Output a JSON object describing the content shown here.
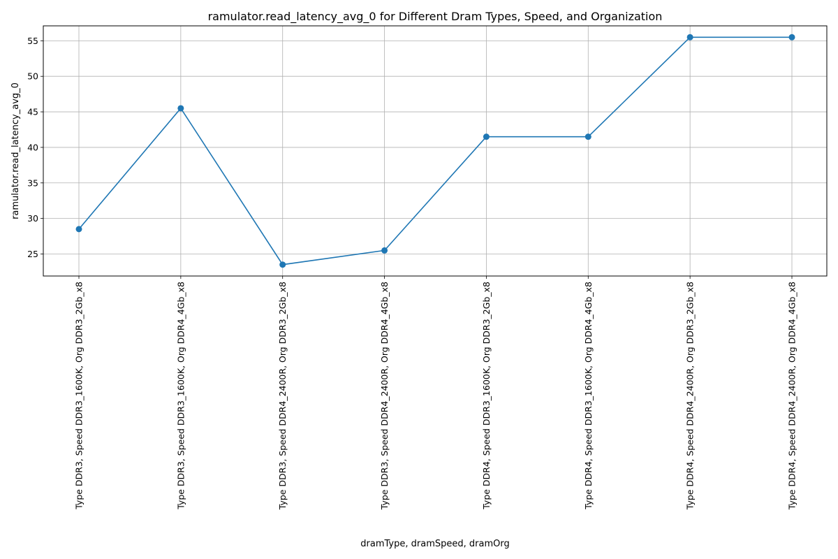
{
  "chart_data": {
    "type": "line",
    "title": "ramulator.read_latency_avg_0 for Different Dram Types, Speed, and Organization",
    "xlabel": "dramType, dramSpeed, dramOrg",
    "ylabel": "ramulator.read_latency_avg_0",
    "categories": [
      "Type DDR3, Speed DDR3_1600K, Org DDR3_2Gb_x8",
      "Type DDR3, Speed DDR3_1600K, Org DDR4_4Gb_x8",
      "Type DDR3, Speed DDR4_2400R, Org DDR3_2Gb_x8",
      "Type DDR3, Speed DDR4_2400R, Org DDR4_4Gb_x8",
      "Type DDR4, Speed DDR3_1600K, Org DDR3_2Gb_x8",
      "Type DDR4, Speed DDR3_1600K, Org DDR4_4Gb_x8",
      "Type DDR4, Speed DDR4_2400R, Org DDR3_2Gb_x8",
      "Type DDR4, Speed DDR4_2400R, Org DDR4_4Gb_x8"
    ],
    "series": [
      {
        "values": [
          28.5,
          45.5,
          23.5,
          25.5,
          41.5,
          41.5,
          55.5,
          55.5
        ],
        "color": "#1f77b4"
      }
    ],
    "yticks": [
      25,
      30,
      35,
      40,
      45,
      50,
      55
    ],
    "ylim": [
      21.9,
      57.1
    ],
    "grid": true,
    "marker": "circle"
  }
}
